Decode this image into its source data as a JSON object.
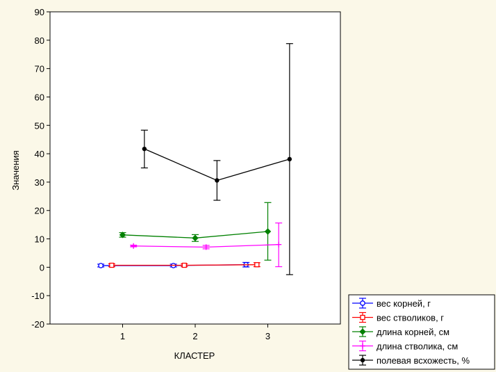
{
  "chart_data": {
    "type": "line",
    "xlabel": "КЛАСТЕР",
    "ylabel": "Значения",
    "xlim": [
      0,
      3
    ],
    "ylim": [
      -20,
      90
    ],
    "xticks": [
      1,
      2,
      3
    ],
    "yticks": [
      -20,
      -10,
      0,
      10,
      20,
      30,
      40,
      50,
      60,
      70,
      80,
      90
    ],
    "grid": false,
    "legend_position": "bottom-right",
    "series": [
      {
        "name": "вес корней, г",
        "color": "#0000ff",
        "marker": "circle",
        "x": [
          0.7,
          1.7,
          2.7
        ],
        "y": [
          0.6,
          0.6,
          0.9
        ],
        "lower": [
          0.1,
          0.1,
          0.1
        ],
        "upper": [
          1.1,
          1.1,
          1.7
        ]
      },
      {
        "name": "вес стволиков, г",
        "color": "#ff0000",
        "marker": "square",
        "x": [
          0.85,
          1.85,
          2.85
        ],
        "y": [
          0.7,
          0.7,
          0.9
        ],
        "lower": [
          0.2,
          0.2,
          0.2
        ],
        "upper": [
          1.2,
          1.2,
          1.6
        ]
      },
      {
        "name": "длина корней, см",
        "color": "#008000",
        "marker": "diamond",
        "x": [
          1.0,
          2.0,
          3.0
        ],
        "y": [
          11.4,
          10.3,
          12.6
        ],
        "lower": [
          10.6,
          9.1,
          2.5
        ],
        "upper": [
          12.2,
          11.5,
          22.8
        ]
      },
      {
        "name": "длина стволика, см",
        "color": "#ff00ff",
        "marker": "plus",
        "x": [
          1.15,
          2.15,
          3.15
        ],
        "y": [
          7.5,
          7.1,
          8.0
        ],
        "lower": [
          7.2,
          6.5,
          0.2
        ],
        "upper": [
          7.8,
          7.7,
          15.6
        ]
      },
      {
        "name": "полевая всхожесть, %",
        "color": "#000000",
        "marker": "dot",
        "x": [
          1.3,
          2.3,
          3.3
        ],
        "y": [
          41.7,
          30.6,
          38.1
        ],
        "lower": [
          35.0,
          23.6,
          -2.6
        ],
        "upper": [
          48.3,
          37.6,
          78.8
        ]
      }
    ]
  }
}
